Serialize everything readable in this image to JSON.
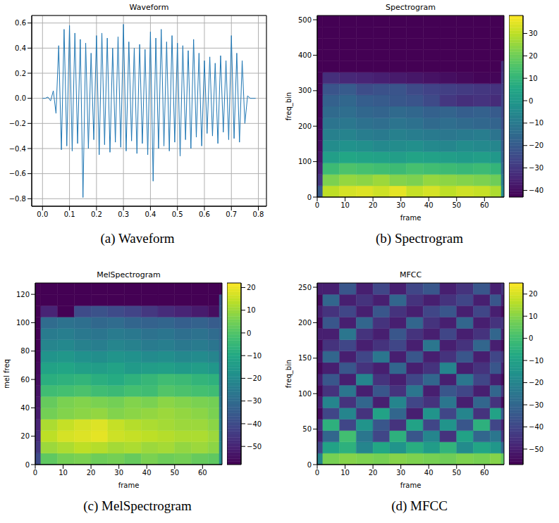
{
  "chart_data": [
    {
      "type": "line",
      "title": "Waveform",
      "caption": "(a) Waveform",
      "color": "#1f77b4",
      "grid": true,
      "xlim": [
        -0.04,
        0.83
      ],
      "ylim": [
        -0.86,
        0.66
      ],
      "xticks": [
        {
          "value": 0,
          "label": "0.0"
        },
        0.1,
        0.2,
        0.3,
        0.4,
        0.5,
        0.6,
        0.7,
        0.8
      ],
      "yticks": [
        {
          "value": -0.8,
          "label": "−0.8"
        },
        {
          "value": -0.6,
          "label": "−0.6"
        },
        {
          "value": -0.4,
          "label": "−0.4"
        },
        {
          "value": -0.2,
          "label": "−0.2"
        },
        {
          "value": 0,
          "label": "0.0"
        },
        0.2,
        0.4,
        0.6
      ],
      "x": [
        0,
        0.01,
        0.02,
        0.03,
        0.04,
        0.05,
        0.06,
        0.07,
        0.08,
        0.09,
        0.1,
        0.11,
        0.12,
        0.13,
        0.14,
        0.15,
        0.16,
        0.17,
        0.18,
        0.19,
        0.2,
        0.21,
        0.22,
        0.23,
        0.24,
        0.25,
        0.26,
        0.27,
        0.28,
        0.29,
        0.3,
        0.31,
        0.32,
        0.33,
        0.34,
        0.35,
        0.36,
        0.37,
        0.38,
        0.39,
        0.4,
        0.41,
        0.42,
        0.43,
        0.44,
        0.45,
        0.46,
        0.47,
        0.48,
        0.49,
        0.5,
        0.51,
        0.52,
        0.53,
        0.54,
        0.55,
        0.56,
        0.57,
        0.58,
        0.59,
        0.6,
        0.61,
        0.62,
        0.63,
        0.64,
        0.65,
        0.66,
        0.67,
        0.68,
        0.69,
        0.7,
        0.71,
        0.72,
        0.73,
        0.74,
        0.75,
        0.76,
        0.77,
        0.78,
        0.79
      ],
      "values": [
        0,
        0,
        0.01,
        -0.02,
        0.06,
        -0.12,
        0.42,
        -0.41,
        0.55,
        -0.38,
        0.58,
        -0.42,
        0.52,
        -0.36,
        0.47,
        -0.79,
        0.44,
        -0.4,
        0.36,
        -0.33,
        0.5,
        -0.45,
        0.52,
        -0.37,
        0.48,
        -0.43,
        0.4,
        -0.35,
        0.49,
        -0.39,
        0.59,
        -0.42,
        0.45,
        -0.34,
        0.4,
        -0.44,
        0.43,
        -0.36,
        0.39,
        -0.45,
        0.53,
        -0.66,
        0.48,
        -0.4,
        0.55,
        -0.38,
        0.45,
        -0.42,
        0.5,
        -0.35,
        0.44,
        -0.46,
        0.42,
        -0.33,
        0.38,
        -0.4,
        0.47,
        -0.31,
        0.36,
        -0.38,
        0.3,
        -0.28,
        0.33,
        -0.3,
        0.28,
        -0.36,
        0.34,
        -0.27,
        0.3,
        -0.33,
        0.5,
        -0.32,
        0.36,
        -0.35,
        0.3,
        -0.2,
        0.02,
        0,
        0,
        0
      ]
    },
    {
      "type": "heatmap",
      "title": "Spectrogram",
      "caption": "(b) Spectrogram",
      "x_label": "frame",
      "y_label": "freq_bin",
      "xlim": [
        0,
        67
      ],
      "ylim": [
        0,
        512
      ],
      "xticks": [
        0,
        10,
        20,
        30,
        40,
        50,
        60
      ],
      "yticks": [
        0,
        100,
        200,
        300,
        400,
        500
      ],
      "x_edges": [
        0,
        2,
        8,
        14,
        20,
        26,
        32,
        38,
        44,
        50,
        56,
        62,
        66,
        67
      ],
      "y_edges": [
        0,
        32,
        64,
        96,
        128,
        160,
        192,
        224,
        256,
        288,
        320,
        352,
        384,
        416,
        448,
        480,
        512
      ],
      "cells": [
        [
          -20,
          30,
          33,
          34,
          32,
          35,
          31,
          33,
          30,
          32,
          31,
          28,
          -5
        ],
        [
          -30,
          22,
          25,
          24,
          26,
          23,
          22,
          25,
          24,
          23,
          22,
          20,
          -10
        ],
        [
          -35,
          12,
          15,
          14,
          13,
          12,
          14,
          13,
          12,
          11,
          12,
          10,
          -15
        ],
        [
          -38,
          2,
          5,
          4,
          3,
          2,
          4,
          3,
          2,
          1,
          2,
          0,
          -18
        ],
        [
          -40,
          -4,
          -2,
          -3,
          -5,
          -4,
          -3,
          -5,
          -6,
          -4,
          -5,
          -6,
          -20
        ],
        [
          -41,
          -8,
          -7,
          -9,
          -10,
          -8,
          -9,
          -10,
          -11,
          -10,
          -9,
          -12,
          -22
        ],
        [
          -42,
          -12,
          -11,
          -13,
          -14,
          -12,
          -13,
          -15,
          -14,
          -15,
          -16,
          -17,
          -24
        ],
        [
          -43,
          -15,
          -14,
          -16,
          -17,
          -15,
          -16,
          -18,
          -17,
          -19,
          -18,
          -20,
          -26
        ],
        [
          -43,
          -18,
          -16,
          -19,
          -20,
          -21,
          -22,
          -25,
          -30,
          -32,
          -31,
          -33,
          -27
        ],
        [
          -43,
          -22,
          -20,
          -24,
          -23,
          -22,
          -25,
          -27,
          -28,
          -29,
          -30,
          -31,
          -28
        ],
        [
          -43,
          -32,
          -34,
          -35,
          -36,
          -37,
          -38,
          -39,
          -40,
          -41,
          -42,
          -42,
          -30
        ],
        [
          -43,
          -43,
          -43,
          -43,
          -43,
          -43,
          -43,
          -43,
          -43,
          -43,
          -43,
          -43,
          -32
        ],
        [
          -43,
          -43,
          -43,
          -43,
          -43,
          -43,
          -43,
          -43,
          -43,
          -43,
          -43,
          -43,
          -43
        ],
        [
          -43,
          -43,
          -43,
          -43,
          -43,
          -43,
          -43,
          -43,
          -43,
          -43,
          -43,
          -43,
          -43
        ],
        [
          -43,
          -43,
          -43,
          -43,
          -43,
          -43,
          -43,
          -43,
          -43,
          -43,
          -43,
          -43,
          -43
        ],
        [
          -43,
          -43,
          -43,
          -43,
          -43,
          -43,
          -43,
          -43,
          -43,
          -43,
          -43,
          -43,
          -43
        ]
      ],
      "colorbar_lim": [
        -43,
        38
      ],
      "colorbar_ticks": [
        30,
        20,
        10,
        0,
        {
          "value": -10,
          "label": "−10"
        },
        {
          "value": -20,
          "label": "−20"
        },
        {
          "value": -30,
          "label": "−30"
        },
        {
          "value": -40,
          "label": "−40"
        }
      ]
    },
    {
      "type": "heatmap",
      "title": "MelSpectrogram",
      "caption": "(c) MelSpectrogram",
      "x_label": "frame",
      "y_label": "mel freq",
      "xlim": [
        0,
        67
      ],
      "ylim": [
        0,
        128
      ],
      "xticks": [
        0,
        10,
        20,
        30,
        40,
        50,
        60
      ],
      "yticks": [
        0,
        20,
        40,
        60,
        80,
        100,
        120
      ],
      "x_edges": [
        0,
        2,
        8,
        14,
        20,
        26,
        32,
        38,
        44,
        50,
        56,
        62,
        66,
        67
      ],
      "y_edges": [
        0,
        8,
        16,
        24,
        32,
        40,
        48,
        56,
        64,
        72,
        80,
        88,
        96,
        104,
        112,
        120,
        128
      ],
      "cells": [
        [
          -40,
          2,
          5,
          6,
          4,
          5,
          3,
          6,
          4,
          5,
          3,
          2,
          -20
        ],
        [
          -45,
          10,
          12,
          14,
          13,
          11,
          12,
          10,
          11,
          9,
          10,
          8,
          -22
        ],
        [
          -48,
          14,
          17,
          18,
          19,
          16,
          15,
          14,
          13,
          12,
          12,
          10,
          -24
        ],
        [
          -50,
          12,
          15,
          17,
          18,
          15,
          13,
          12,
          11,
          10,
          10,
          8,
          -25
        ],
        [
          -52,
          5,
          7,
          8,
          9,
          7,
          8,
          9,
          10,
          9,
          8,
          6,
          -26
        ],
        [
          -53,
          3,
          6,
          7,
          6,
          5,
          7,
          6,
          8,
          7,
          6,
          5,
          -27
        ],
        [
          -54,
          -3,
          -2,
          -1,
          -3,
          -4,
          -2,
          -3,
          0,
          -1,
          -2,
          -3,
          -28
        ],
        [
          -55,
          -8,
          -7,
          -6,
          -8,
          -9,
          -7,
          -5,
          -3,
          -4,
          -6,
          -7,
          -29
        ],
        [
          -56,
          -12,
          -11,
          -13,
          -14,
          -12,
          -15,
          -14,
          -13,
          -15,
          -14,
          -16,
          -30
        ],
        [
          -57,
          -17,
          -16,
          -18,
          -19,
          -17,
          -18,
          -20,
          -19,
          -21,
          -20,
          -22,
          -31
        ],
        [
          -58,
          -22,
          -21,
          -23,
          -24,
          -22,
          -23,
          -25,
          -24,
          -26,
          -25,
          -27,
          -32
        ],
        [
          -58,
          -25,
          -24,
          -26,
          -27,
          -25,
          -26,
          -28,
          -27,
          -29,
          -28,
          -30,
          -33
        ],
        [
          -58,
          -30,
          -28,
          -29,
          -31,
          -30,
          -32,
          -33,
          -32,
          -34,
          -33,
          -35,
          -34
        ],
        [
          -58,
          -50,
          -58,
          -40,
          -38,
          -40,
          -42,
          -45,
          -48,
          -50,
          -52,
          -55,
          -35
        ],
        [
          -58,
          -58,
          -58,
          -58,
          -58,
          -58,
          -58,
          -58,
          -58,
          -58,
          -58,
          -58,
          -36
        ],
        [
          -58,
          -58,
          -58,
          -58,
          -58,
          -58,
          -58,
          -58,
          -58,
          -58,
          -58,
          -58,
          -58
        ]
      ],
      "colorbar_lim": [
        -58,
        22
      ],
      "colorbar_ticks": [
        20,
        10,
        0,
        {
          "value": -10,
          "label": "−10"
        },
        {
          "value": -20,
          "label": "−20"
        },
        {
          "value": -30,
          "label": "−30"
        },
        {
          "value": -40,
          "label": "−40"
        },
        {
          "value": -50,
          "label": "−50"
        }
      ]
    },
    {
      "type": "heatmap",
      "title": "MFCC",
      "caption": "(d) MFCC",
      "x_label": "frame",
      "y_label": "freq_bin",
      "xlim": [
        0,
        67
      ],
      "ylim": [
        0,
        256
      ],
      "xticks": [
        0,
        10,
        20,
        30,
        40,
        50,
        60
      ],
      "yticks": [
        0,
        50,
        100,
        150,
        200,
        250
      ],
      "x_edges": [
        0,
        2,
        8,
        14,
        20,
        26,
        32,
        38,
        44,
        50,
        56,
        62,
        66,
        67
      ],
      "y_edges": [
        0,
        16,
        32,
        48,
        64,
        80,
        96,
        112,
        128,
        144,
        160,
        176,
        192,
        208,
        224,
        240,
        256
      ],
      "cells": [
        [
          -20,
          8,
          10,
          9,
          8,
          10,
          9,
          8,
          7,
          9,
          8,
          10,
          5
        ],
        [
          -40,
          -10,
          -5,
          -20,
          -8,
          -15,
          -6,
          -12,
          -4,
          -18,
          -9,
          -14,
          -30
        ],
        [
          -50,
          -30,
          0,
          -25,
          -40,
          -5,
          -35,
          -20,
          -45,
          -10,
          -30,
          -25,
          -45
        ],
        [
          -45,
          -5,
          -40,
          -15,
          -35,
          -45,
          -10,
          -40,
          -15,
          -35,
          -5,
          -40,
          -50
        ],
        [
          -55,
          -40,
          -20,
          -45,
          -10,
          -30,
          -50,
          -15,
          -40,
          -20,
          -45,
          -10,
          -35
        ],
        [
          -50,
          -20,
          -45,
          -30,
          -50,
          -20,
          -40,
          -45,
          -25,
          -50,
          -30,
          -45,
          -55
        ],
        [
          -55,
          -45,
          -25,
          -50,
          -35,
          -45,
          -25,
          -50,
          -35,
          -40,
          -50,
          -30,
          -45
        ],
        [
          -50,
          -35,
          -50,
          -20,
          -45,
          -50,
          -40,
          -30,
          -50,
          -25,
          -40,
          -50,
          -55
        ],
        [
          -55,
          -50,
          -35,
          -45,
          -50,
          -30,
          -50,
          -45,
          -20,
          -50,
          -45,
          -35,
          -50
        ],
        [
          -52,
          -30,
          -50,
          -40,
          -25,
          -50,
          -35,
          -50,
          -45,
          -35,
          -50,
          -40,
          -45
        ],
        [
          -55,
          -45,
          -40,
          -50,
          -45,
          -40,
          -50,
          -25,
          -50,
          -45,
          -30,
          -50,
          -55
        ],
        [
          -50,
          -50,
          -25,
          -45,
          -50,
          -35,
          -45,
          -50,
          -40,
          -50,
          -45,
          -30,
          -50
        ],
        [
          -55,
          -35,
          -50,
          -30,
          -45,
          -50,
          -30,
          -45,
          -50,
          -30,
          -50,
          -45,
          -45
        ],
        [
          -50,
          -45,
          -40,
          -50,
          -35,
          -45,
          -50,
          -40,
          -35,
          -50,
          -40,
          -50,
          -55
        ],
        [
          -55,
          -30,
          -50,
          -45,
          -50,
          -30,
          -45,
          -50,
          -45,
          -40,
          -50,
          -35,
          -50
        ],
        [
          -50,
          -50,
          -35,
          -50,
          -40,
          -50,
          -40,
          -35,
          -50,
          -45,
          -35,
          -50,
          -45
        ]
      ],
      "colorbar_lim": [
        -57,
        25
      ],
      "colorbar_ticks": [
        20,
        10,
        0,
        {
          "value": -10,
          "label": "−10"
        },
        {
          "value": -20,
          "label": "−20"
        },
        {
          "value": -30,
          "label": "−30"
        },
        {
          "value": -40,
          "label": "−40"
        },
        {
          "value": -50,
          "label": "−50"
        }
      ]
    }
  ]
}
